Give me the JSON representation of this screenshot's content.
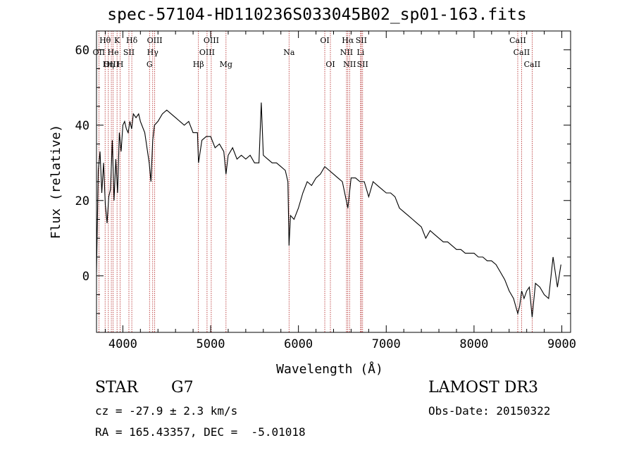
{
  "title": "spec-57104-HD110236S033045B02_sp01-163.fits",
  "info": {
    "object_class": "STAR",
    "subclass": "G7",
    "cz": "cz = -27.9 ± 2.3 km/s",
    "coords": "RA = 165.43357, DEC =  -5.01018",
    "survey": "LAMOST DR3",
    "obs_date": "Obs-Date: 20150322"
  },
  "chart_data": {
    "type": "line",
    "xlabel": "Wavelength (Å)",
    "ylabel": "Flux (relative)",
    "xlim": [
      3700,
      9100
    ],
    "ylim": [
      -15,
      65
    ],
    "xticks": [
      4000,
      5000,
      6000,
      7000,
      8000,
      9000
    ],
    "yticks": [
      0,
      20,
      40,
      60
    ],
    "series": [
      {
        "x": [
          3700,
          3720,
          3740,
          3760,
          3780,
          3800,
          3820,
          3840,
          3860,
          3880,
          3900,
          3920,
          3940,
          3960,
          3980,
          4000,
          4020,
          4040,
          4060,
          4080,
          4100,
          4120,
          4150,
          4180,
          4200,
          4250,
          4300,
          4320,
          4340,
          4360,
          4400,
          4450,
          4500,
          4550,
          4600,
          4650,
          4700,
          4750,
          4800,
          4850,
          4862,
          4900,
          4950,
          5000,
          5050,
          5100,
          5150,
          5175,
          5200,
          5250,
          5300,
          5350,
          5400,
          5450,
          5500,
          5550,
          5577,
          5600,
          5650,
          5700,
          5750,
          5800,
          5850,
          5880,
          5893,
          5910,
          5950,
          6000,
          6050,
          6100,
          6150,
          6200,
          6250,
          6300,
          6350,
          6400,
          6450,
          6500,
          6563,
          6600,
          6650,
          6700,
          6750,
          6800,
          6850,
          6900,
          6950,
          7000,
          7050,
          7100,
          7150,
          7200,
          7250,
          7300,
          7350,
          7400,
          7450,
          7500,
          7550,
          7600,
          7650,
          7700,
          7750,
          7800,
          7850,
          7900,
          7950,
          8000,
          8050,
          8100,
          8150,
          8200,
          8250,
          8300,
          8350,
          8400,
          8450,
          8498,
          8520,
          8542,
          8570,
          8600,
          8630,
          8662,
          8700,
          8750,
          8800,
          8850,
          8900,
          8950,
          8990
        ],
        "y": [
          1,
          28,
          33,
          22,
          30,
          19,
          14,
          21,
          23,
          36,
          20,
          31,
          22,
          38,
          33,
          40,
          41,
          39,
          38,
          41,
          39,
          43,
          42,
          43,
          41,
          38,
          30,
          25,
          36,
          40,
          41,
          43,
          44,
          43,
          42,
          41,
          40,
          41,
          38,
          38,
          30,
          36,
          37,
          37,
          34,
          35,
          33,
          27,
          32,
          34,
          31,
          32,
          31,
          32,
          30,
          30,
          46,
          32,
          31,
          30,
          30,
          29,
          28,
          25,
          8,
          16,
          15,
          18,
          22,
          25,
          24,
          26,
          27,
          29,
          28,
          27,
          26,
          25,
          18,
          26,
          26,
          25,
          25,
          21,
          25,
          24,
          23,
          22,
          22,
          21,
          18,
          17,
          16,
          15,
          14,
          13,
          10,
          12,
          11,
          10,
          9,
          9,
          8,
          7,
          7,
          6,
          6,
          6,
          5,
          5,
          4,
          4,
          3,
          1,
          -1,
          -4,
          -6,
          -10,
          -8,
          -4,
          -6,
          -4,
          -3,
          -11,
          -2,
          -3,
          -5,
          -6,
          5,
          -3,
          3
        ]
      }
    ],
    "lines": [
      {
        "label": "Hθ",
        "x": 3798,
        "row": 1
      },
      {
        "label": "K",
        "x": 3934,
        "row": 1
      },
      {
        "label": "Hδ",
        "x": 4102,
        "row": 1
      },
      {
        "label": "OIII",
        "x": 4363,
        "row": 1
      },
      {
        "label": "OIII",
        "x": 5007,
        "row": 1
      },
      {
        "label": "OI",
        "x": 6300,
        "row": 1
      },
      {
        "label": "Hα",
        "x": 6563,
        "row": 1
      },
      {
        "label": "SII",
        "x": 6716,
        "row": 1
      },
      {
        "label": "CaII",
        "x": 8498,
        "row": 1
      },
      {
        "label": "OII",
        "x": 3727,
        "row": 2
      },
      {
        "label": "He",
        "x": 3889,
        "row": 2
      },
      {
        "label": "SII",
        "x": 4069,
        "row": 2
      },
      {
        "label": "Hγ",
        "x": 4340,
        "row": 2
      },
      {
        "label": "OIII",
        "x": 4959,
        "row": 2
      },
      {
        "label": "Na",
        "x": 5893,
        "row": 2
      },
      {
        "label": "NII",
        "x": 6548,
        "row": 2
      },
      {
        "label": "Li",
        "x": 6708,
        "row": 2
      },
      {
        "label": "CaII",
        "x": 8542,
        "row": 2
      },
      {
        "label": "OIII",
        "x": 3869,
        "row": 3
      },
      {
        "label": "Hη",
        "x": 3835,
        "row": 3
      },
      {
        "label": "H",
        "x": 3969,
        "row": 3
      },
      {
        "label": "G",
        "x": 4304,
        "row": 3
      },
      {
        "label": "Hβ",
        "x": 4861,
        "row": 3
      },
      {
        "label": "Mg",
        "x": 5175,
        "row": 3
      },
      {
        "label": "OI",
        "x": 6364,
        "row": 3
      },
      {
        "label": "NII",
        "x": 6583,
        "row": 3
      },
      {
        "label": "SII",
        "x": 6731,
        "row": 3
      },
      {
        "label": "CaII",
        "x": 8662,
        "row": 3
      }
    ]
  }
}
